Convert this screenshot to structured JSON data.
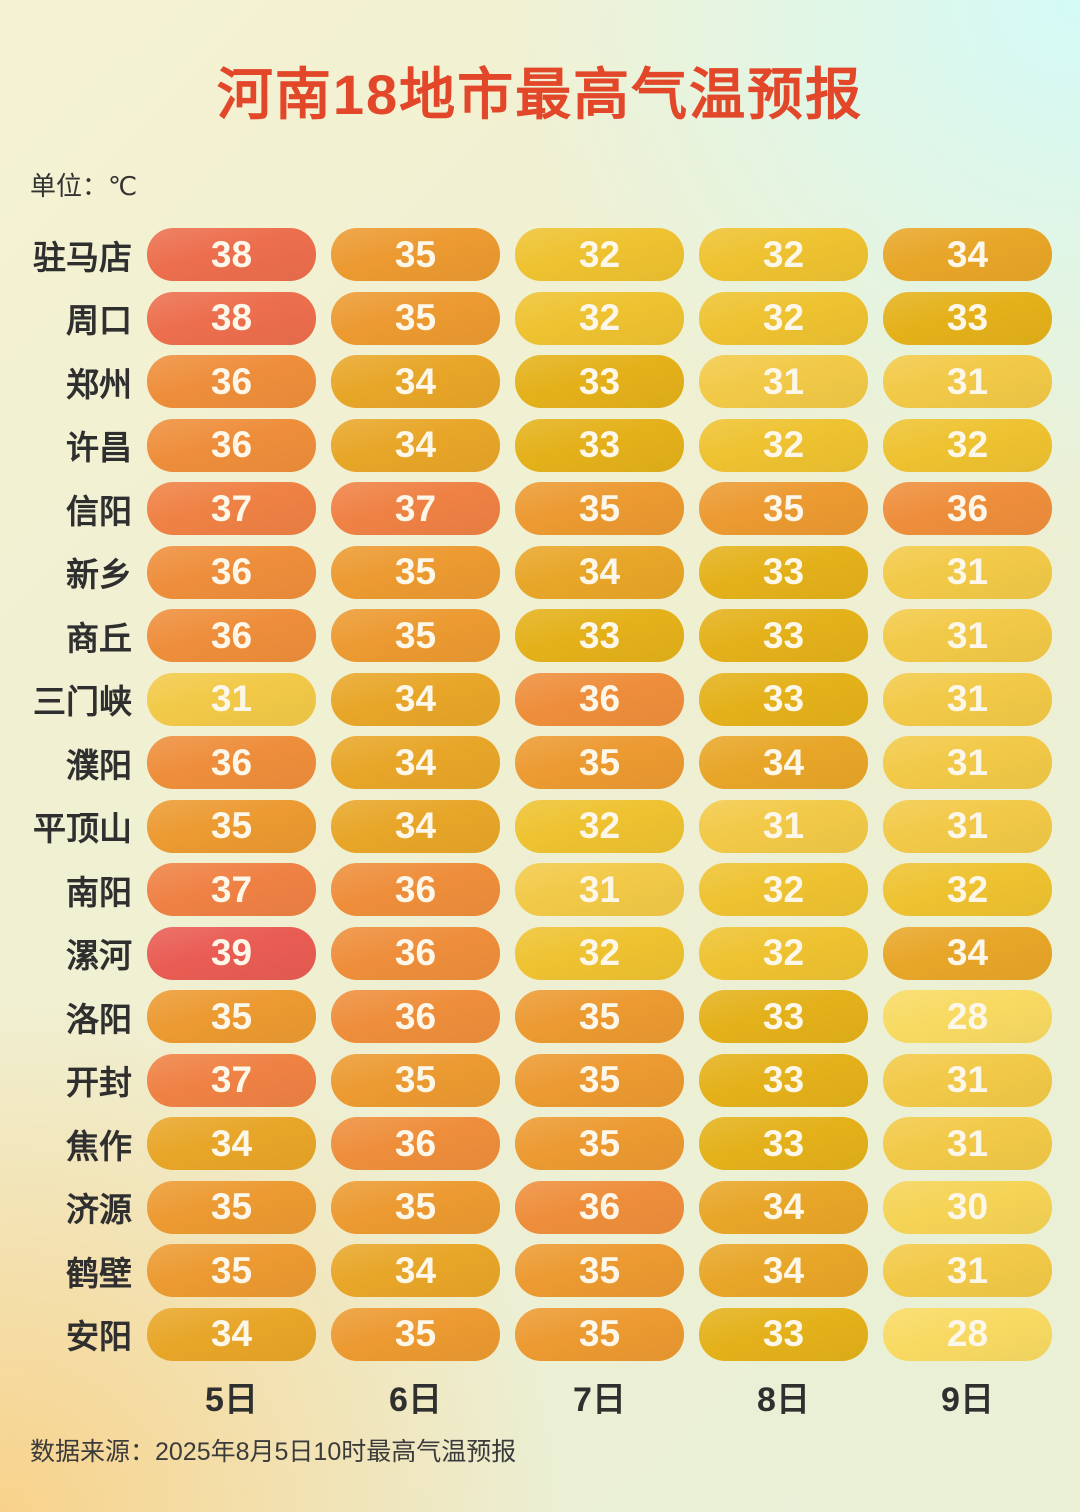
{
  "title": "河南18地市最高气温预报",
  "unit_label": "单位：℃",
  "source_label": "数据来源：2025年8月5日10时最高气温预报",
  "chart_data": {
    "type": "table",
    "title": "河南18地市最高气温预报",
    "unit": "℃",
    "legend_position": "none",
    "grid": false,
    "columns": [
      "5日",
      "6日",
      "7日",
      "8日",
      "9日"
    ],
    "rows": [
      {
        "city": "驻马店",
        "values": [
          38,
          35,
          32,
          32,
          34
        ]
      },
      {
        "city": "周口",
        "values": [
          38,
          35,
          32,
          32,
          33
        ]
      },
      {
        "city": "郑州",
        "values": [
          36,
          34,
          33,
          31,
          31
        ]
      },
      {
        "city": "许昌",
        "values": [
          36,
          34,
          33,
          32,
          32
        ]
      },
      {
        "city": "信阳",
        "values": [
          37,
          37,
          35,
          35,
          36
        ]
      },
      {
        "city": "新乡",
        "values": [
          36,
          35,
          34,
          33,
          31
        ]
      },
      {
        "city": "商丘",
        "values": [
          36,
          35,
          33,
          33,
          31
        ]
      },
      {
        "city": "三门峡",
        "values": [
          31,
          34,
          36,
          33,
          31
        ]
      },
      {
        "city": "濮阳",
        "values": [
          36,
          34,
          35,
          34,
          31
        ]
      },
      {
        "city": "平顶山",
        "values": [
          35,
          34,
          32,
          31,
          31
        ]
      },
      {
        "city": "南阳",
        "values": [
          37,
          36,
          31,
          32,
          32
        ]
      },
      {
        "city": "漯河",
        "values": [
          39,
          36,
          32,
          32,
          34
        ]
      },
      {
        "city": "洛阳",
        "values": [
          35,
          36,
          35,
          33,
          28
        ]
      },
      {
        "city": "开封",
        "values": [
          37,
          35,
          35,
          33,
          31
        ]
      },
      {
        "city": "焦作",
        "values": [
          34,
          36,
          35,
          33,
          31
        ]
      },
      {
        "city": "济源",
        "values": [
          35,
          35,
          36,
          34,
          30
        ]
      },
      {
        "city": "鹤壁",
        "values": [
          35,
          34,
          35,
          34,
          31
        ]
      },
      {
        "city": "安阳",
        "values": [
          34,
          35,
          35,
          33,
          28
        ]
      }
    ]
  },
  "colors": {
    "title": "#e2472a",
    "label_text": "#2f2f2f",
    "pill_text": "#fdf7ea",
    "temp_scale": {
      "28": "#f8da62",
      "30": "#f5d355",
      "31": "#f2c947",
      "32": "#eec230",
      "33": "#e4b11a",
      "34": "#e8a628",
      "35": "#ec9a31",
      "36": "#ee8e3b",
      "37": "#ef8144",
      "38": "#ec6e4d",
      "39": "#e95c53"
    }
  }
}
